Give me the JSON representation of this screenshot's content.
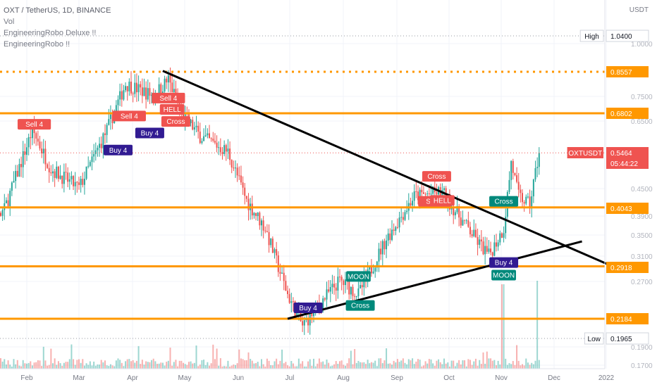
{
  "legend": {
    "symbol_line": "OXT / TetherUS, 1D, BINANCE",
    "vol": "Vol",
    "ind1": "EngineeringRobo Deluxe !!",
    "ind2": "EngineeringRobo !!"
  },
  "currency": "USDT",
  "colors": {
    "level": "#ff9800",
    "trendline": "#000000",
    "up": "#26a69a",
    "down": "#ef5350",
    "current": "#ef5350"
  },
  "chart_data": {
    "type": "candlestick",
    "symbol": "OXT / TetherUS",
    "interval": "1D",
    "exchange": "BINANCE",
    "y_scale": "log",
    "x_ticks": [
      "Feb",
      "Mar",
      "Apr",
      "May",
      "Jun",
      "Jul",
      "Aug",
      "Sep",
      "Oct",
      "Nov",
      "Dec",
      "2022"
    ],
    "y_ticks": [
      "1.0000",
      "0.7500",
      "0.6500",
      "0.4500",
      "0.3900",
      "0.3500",
      "0.3100",
      "0.2700",
      "0.1900",
      "0.1700"
    ],
    "price_labels": [
      {
        "label": "High",
        "value": "1.0400"
      },
      {
        "label": "",
        "value": "0.8557"
      },
      {
        "label": "",
        "value": "0.6802"
      },
      {
        "label": "OXTUSDT",
        "value": "0.5464",
        "sub": "05:44:22"
      },
      {
        "label": "",
        "value": "0.4043"
      },
      {
        "label": "",
        "value": "0.2918"
      },
      {
        "label": "",
        "value": "0.2184"
      },
      {
        "label": "Low",
        "value": "0.1965"
      }
    ],
    "horizontal_levels": [
      {
        "price": 0.8557,
        "style": "dotted"
      },
      {
        "price": 0.6802,
        "style": "solid"
      },
      {
        "price": 0.4043,
        "style": "solid"
      },
      {
        "price": 0.2918,
        "style": "solid"
      },
      {
        "price": 0.2184,
        "style": "solid"
      }
    ],
    "trendlines": [
      {
        "from": [
          "Apr 15",
          0.86
        ],
        "to": [
          "Dec 10",
          0.295
        ]
      },
      {
        "from": [
          "Jun 21",
          0.2184
        ],
        "to": [
          "Nov 26",
          0.335
        ]
      }
    ],
    "signals": [
      {
        "text": "Cross",
        "date": "Jan 1",
        "price": 0.215,
        "kind": "teal"
      },
      {
        "text": "Sell 4",
        "date": "Feb 5",
        "price": 0.64,
        "kind": "sell"
      },
      {
        "text": "Buy 4",
        "date": "Mar 22",
        "price": 0.555,
        "kind": "buy"
      },
      {
        "text": "Sell 4",
        "date": "Mar 28",
        "price": 0.67,
        "kind": "sell"
      },
      {
        "text": "Buy 4",
        "date": "Apr 8",
        "price": 0.61,
        "kind": "buy"
      },
      {
        "text": "Sell 4",
        "date": "Apr 18",
        "price": 0.74,
        "kind": "sell"
      },
      {
        "text": "HELL",
        "date": "Apr 20",
        "price": 0.695,
        "kind": "sell"
      },
      {
        "text": "Cross",
        "date": "Apr 22",
        "price": 0.65,
        "kind": "sell"
      },
      {
        "text": "Buy 4",
        "date": "Jul 2",
        "price": 0.232,
        "kind": "buy"
      },
      {
        "text": "MOON",
        "date": "Jul 29",
        "price": 0.276,
        "kind": "teal"
      },
      {
        "text": "Cross",
        "date": "Jul 30",
        "price": 0.235,
        "kind": "teal"
      },
      {
        "text": "Cross",
        "date": "Sep 9",
        "price": 0.48,
        "kind": "sell"
      },
      {
        "text": "Sell 4",
        "date": "Sep 8",
        "price": 0.418,
        "kind": "sell"
      },
      {
        "text": "HELL",
        "date": "Sep 12",
        "price": 0.42,
        "kind": "sell"
      },
      {
        "text": "Cross",
        "date": "Oct 15",
        "price": 0.418,
        "kind": "teal"
      },
      {
        "text": "Buy 4",
        "date": "Oct 15",
        "price": 0.298,
        "kind": "buy"
      },
      {
        "text": "MOON",
        "date": "Oct 15",
        "price": 0.278,
        "kind": "teal"
      }
    ]
  }
}
